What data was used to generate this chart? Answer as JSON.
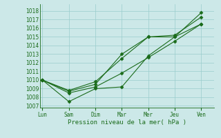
{
  "ylabel": "Pression niveau de la mer( hPa )",
  "x_labels": [
    "Lun",
    "Sam",
    "Dim",
    "Mar",
    "Mer",
    "Jeu",
    "Ven"
  ],
  "x_ticks": [
    0,
    1,
    2,
    3,
    4,
    5,
    6
  ],
  "ylim": [
    1006.8,
    1018.8
  ],
  "yticks": [
    1007,
    1008,
    1009,
    1010,
    1011,
    1012,
    1013,
    1014,
    1015,
    1016,
    1017,
    1018
  ],
  "xlim": [
    -0.1,
    6.5
  ],
  "bg_color": "#cce8e8",
  "grid_color": "#99cccc",
  "line_color": "#1a6b1a",
  "series": [
    [
      1010.0,
      1008.7,
      1009.5,
      1013.0,
      1015.0,
      1015.0,
      1017.8
    ],
    [
      1010.0,
      1008.8,
      1009.8,
      1012.5,
      1015.0,
      1015.2,
      1017.3
    ],
    [
      1010.0,
      1007.5,
      1009.0,
      1009.2,
      1012.8,
      1015.0,
      1016.5
    ],
    [
      1010.0,
      1008.5,
      1009.2,
      1010.8,
      1012.6,
      1014.5,
      1016.5
    ]
  ],
  "marker": "D",
  "markersize": 2.5,
  "linewidth": 0.8,
  "tick_fontsize": 5.5,
  "xlabel_fontsize": 6.5,
  "ylabel_fontsize": 6.5
}
